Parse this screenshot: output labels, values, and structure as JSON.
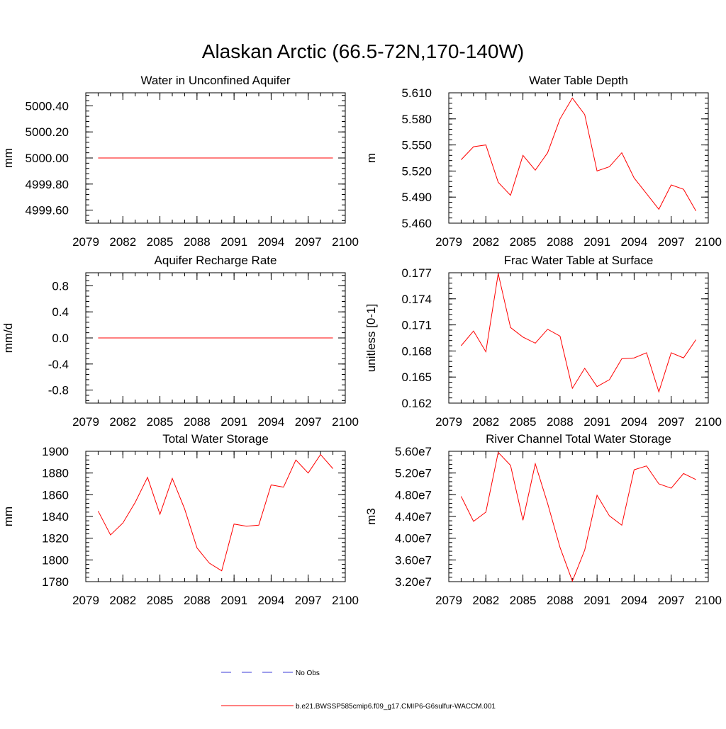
{
  "figure": {
    "title": "Alaskan Arctic (66.5-72N,170-140W)"
  },
  "legend": {
    "entries": [
      {
        "label": "No Obs",
        "color": "#3b3bd8",
        "style": "dashed"
      },
      {
        "label": "b.e21.BWSSP585cmip6.f09_g17.CMIP6-G6sulfur-WACCM.001",
        "color": "#ff0000",
        "style": "solid"
      }
    ]
  },
  "chart_data": [
    {
      "id": "aquifer",
      "type": "line",
      "title": "Water in Unconfined Aquifer",
      "xlabel": "",
      "ylabel": "mm",
      "xlim": [
        2079,
        2100
      ],
      "ylim": [
        4999.5,
        5000.5
      ],
      "xticks": [
        2079,
        2082,
        2085,
        2088,
        2091,
        2094,
        2097,
        2100
      ],
      "yticks": [
        4999.6,
        4999.8,
        5000.0,
        5000.2,
        5000.4
      ],
      "ytick_labels": [
        "4999.60",
        "4999.80",
        "5000.00",
        "5000.20",
        "5000.40"
      ],
      "series": [
        {
          "color": "#ff0000",
          "x": [
            2080,
            2081,
            2082,
            2083,
            2084,
            2085,
            2086,
            2087,
            2088,
            2089,
            2090,
            2091,
            2092,
            2093,
            2094,
            2095,
            2096,
            2097,
            2098,
            2099
          ],
          "y": [
            5000,
            5000,
            5000,
            5000,
            5000,
            5000,
            5000,
            5000,
            5000,
            5000,
            5000,
            5000,
            5000,
            5000,
            5000,
            5000,
            5000,
            5000,
            5000,
            5000
          ]
        }
      ]
    },
    {
      "id": "wtd",
      "type": "line",
      "title": "Water Table Depth",
      "xlabel": "",
      "ylabel": "m",
      "xlim": [
        2079,
        2100
      ],
      "ylim": [
        5.46,
        5.61
      ],
      "xticks": [
        2079,
        2082,
        2085,
        2088,
        2091,
        2094,
        2097,
        2100
      ],
      "yticks": [
        5.46,
        5.49,
        5.52,
        5.55,
        5.58,
        5.61
      ],
      "ytick_labels": [
        "5.460",
        "5.490",
        "5.520",
        "5.550",
        "5.580",
        "5.610"
      ],
      "series": [
        {
          "color": "#ff0000",
          "x": [
            2080,
            2081,
            2082,
            2083,
            2084,
            2085,
            2086,
            2087,
            2088,
            2089,
            2090,
            2091,
            2092,
            2093,
            2094,
            2095,
            2096,
            2097,
            2098,
            2099
          ],
          "y": [
            5.533,
            5.548,
            5.55,
            5.507,
            5.492,
            5.538,
            5.521,
            5.541,
            5.58,
            5.604,
            5.585,
            5.52,
            5.525,
            5.541,
            5.512,
            5.494,
            5.476,
            5.504,
            5.499,
            5.474
          ]
        }
      ]
    },
    {
      "id": "recharge",
      "type": "line",
      "title": "Aquifer Recharge Rate",
      "xlabel": "",
      "ylabel": "mm/d",
      "xlim": [
        2079,
        2100
      ],
      "ylim": [
        -1.0,
        1.0
      ],
      "xticks": [
        2079,
        2082,
        2085,
        2088,
        2091,
        2094,
        2097,
        2100
      ],
      "yticks": [
        -0.8,
        -0.4,
        0.0,
        0.4,
        0.8
      ],
      "ytick_labels": [
        "-0.8",
        "-0.4",
        "0.0",
        "0.4",
        "0.8"
      ],
      "series": [
        {
          "color": "#ff0000",
          "x": [
            2080,
            2081,
            2082,
            2083,
            2084,
            2085,
            2086,
            2087,
            2088,
            2089,
            2090,
            2091,
            2092,
            2093,
            2094,
            2095,
            2096,
            2097,
            2098,
            2099
          ],
          "y": [
            0,
            0,
            0,
            0,
            0,
            0,
            0,
            0,
            0,
            0,
            0,
            0,
            0,
            0,
            0,
            0,
            0,
            0,
            0,
            0
          ]
        }
      ]
    },
    {
      "id": "fwt",
      "type": "line",
      "title": "Frac Water Table at Surface",
      "xlabel": "",
      "ylabel": "unitless [0-1]",
      "xlim": [
        2079,
        2100
      ],
      "ylim": [
        0.162,
        0.177
      ],
      "xticks": [
        2079,
        2082,
        2085,
        2088,
        2091,
        2094,
        2097,
        2100
      ],
      "yticks": [
        0.162,
        0.165,
        0.168,
        0.171,
        0.174,
        0.177
      ],
      "ytick_labels": [
        "0.162",
        "0.165",
        "0.168",
        "0.171",
        "0.174",
        "0.177"
      ],
      "series": [
        {
          "color": "#ff0000",
          "x": [
            2080,
            2081,
            2082,
            2083,
            2084,
            2085,
            2086,
            2087,
            2088,
            2089,
            2090,
            2091,
            2092,
            2093,
            2094,
            2095,
            2096,
            2097,
            2098,
            2099
          ],
          "y": [
            0.1686,
            0.1703,
            0.1679,
            0.1769,
            0.1707,
            0.1696,
            0.1689,
            0.1705,
            0.1697,
            0.1637,
            0.166,
            0.1639,
            0.1647,
            0.1671,
            0.1672,
            0.1678,
            0.1633,
            0.1678,
            0.1672,
            0.1693
          ]
        }
      ]
    },
    {
      "id": "tws",
      "type": "line",
      "title": "Total Water Storage",
      "xlabel": "",
      "ylabel": "mm",
      "xlim": [
        2079,
        2100
      ],
      "ylim": [
        1780,
        1900
      ],
      "xticks": [
        2079,
        2082,
        2085,
        2088,
        2091,
        2094,
        2097,
        2100
      ],
      "yticks": [
        1780,
        1800,
        1820,
        1840,
        1860,
        1880,
        1900
      ],
      "ytick_labels": [
        "1780",
        "1800",
        "1820",
        "1840",
        "1860",
        "1880",
        "1900"
      ],
      "series": [
        {
          "color": "#ff0000",
          "x": [
            2080,
            2081,
            2082,
            2083,
            2084,
            2085,
            2086,
            2087,
            2088,
            2089,
            2090,
            2091,
            2092,
            2093,
            2094,
            2095,
            2096,
            2097,
            2098,
            2099
          ],
          "y": [
            1845,
            1823,
            1834,
            1853,
            1876,
            1842,
            1875,
            1847,
            1811,
            1797,
            1790,
            1833,
            1831,
            1832,
            1869,
            1867,
            1892,
            1880,
            1897,
            1884
          ]
        }
      ]
    },
    {
      "id": "river",
      "type": "line",
      "title": "River Channel Total Water Storage",
      "xlabel": "",
      "ylabel": "m3",
      "xlim": [
        2079,
        2100
      ],
      "ylim": [
        32000000.0,
        56000000.0
      ],
      "xticks": [
        2079,
        2082,
        2085,
        2088,
        2091,
        2094,
        2097,
        2100
      ],
      "yticks": [
        32000000.0,
        36000000.0,
        40000000.0,
        44000000.0,
        48000000.0,
        52000000.0,
        56000000.0
      ],
      "ytick_labels": [
        "3.20e7",
        "3.60e7",
        "4.00e7",
        "4.40e7",
        "4.80e7",
        "5.20e7",
        "5.60e7"
      ],
      "series": [
        {
          "color": "#ff0000",
          "x": [
            2080,
            2081,
            2082,
            2083,
            2084,
            2085,
            2086,
            2087,
            2088,
            2089,
            2090,
            2091,
            2092,
            2093,
            2094,
            2095,
            2096,
            2097,
            2098,
            2099
          ],
          "y": [
            47700000.0,
            43100000.0,
            44800000.0,
            55800000.0,
            53400000.0,
            43300000.0,
            53700000.0,
            46400000.0,
            38300000.0,
            32100000.0,
            37800000.0,
            47900000.0,
            44100000.0,
            42400000.0,
            52600000.0,
            53300000.0,
            50000000.0,
            49200000.0,
            51900000.0,
            50800000.0
          ]
        }
      ]
    }
  ]
}
